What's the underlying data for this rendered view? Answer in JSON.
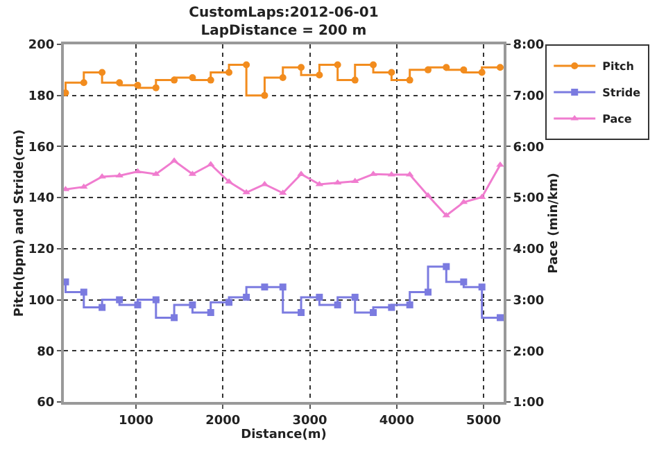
{
  "chart_data": {
    "type": "step",
    "title": "CustomLaps:2012-06-01",
    "subtitle": "LapDistance = 200 m",
    "xlabel": "Distance(m)",
    "ylabel": "Pitch(bpm) and Stride(cm)",
    "y2label": "Pace (min/km)",
    "x": [
      190,
      400,
      610,
      810,
      1020,
      1230,
      1440,
      1650,
      1860,
      2070,
      2270,
      2480,
      2690,
      2900,
      3110,
      3320,
      3520,
      3730,
      3940,
      4150,
      4360,
      4570,
      4770,
      4980,
      5190
    ],
    "series": [
      {
        "name": "Pitch",
        "marker": "circle",
        "color": "#f28c1e",
        "values": [
          181,
          185,
          189,
          185,
          184,
          183,
          186,
          187,
          186,
          189,
          192,
          180,
          187,
          191,
          188,
          192,
          186,
          192,
          189,
          186,
          190,
          191,
          190,
          189,
          191
        ]
      },
      {
        "name": "Stride",
        "marker": "square",
        "color": "#7b7be0",
        "values": [
          107,
          103,
          97,
          100,
          98,
          100,
          93,
          98,
          95,
          99,
          101,
          105,
          105,
          95,
          101,
          98,
          101,
          95,
          97,
          98,
          103,
          113,
          107,
          105,
          93
        ]
      },
      {
        "name": "Pace",
        "type": "line",
        "marker": "triangle",
        "color": "#f07ccf",
        "axis": "y2",
        "values": [
          5.16,
          5.21,
          5.41,
          5.43,
          5.51,
          5.46,
          5.72,
          5.46,
          5.65,
          5.31,
          5.1,
          5.26,
          5.09,
          5.46,
          5.26,
          5.29,
          5.32,
          5.46,
          5.45,
          5.45,
          5.04,
          4.65,
          4.91,
          5.01,
          5.64
        ]
      }
    ],
    "xlim": [
      170,
      5230
    ],
    "xticks": [
      1000,
      2000,
      3000,
      4000,
      5000
    ],
    "ylim": [
      60,
      200
    ],
    "yticks": [
      60,
      80,
      100,
      120,
      140,
      160,
      180,
      200
    ],
    "y2lim": [
      1,
      8
    ],
    "y2ticks": [
      {
        "value": 1,
        "label": "1:00"
      },
      {
        "value": 2,
        "label": "2:00"
      },
      {
        "value": 3,
        "label": "3:00"
      },
      {
        "value": 4,
        "label": "4:00"
      },
      {
        "value": 5,
        "label": "5:00"
      },
      {
        "value": 6,
        "label": "6:00"
      },
      {
        "value": 7,
        "label": "7:00"
      },
      {
        "value": 8,
        "label": "8:00"
      }
    ],
    "grid": true,
    "legend": "top right",
    "line_style": "solid"
  }
}
